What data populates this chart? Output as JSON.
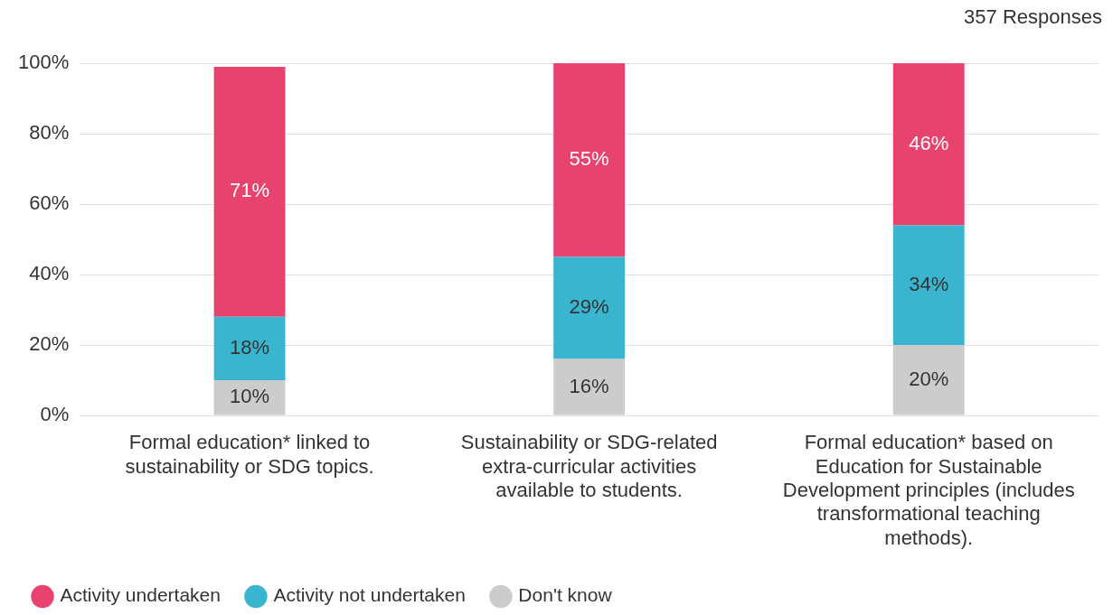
{
  "chart_data": {
    "type": "bar",
    "stacked": true,
    "annotations": [
      "357 Responses"
    ],
    "categories": [
      "Formal education* linked to sustainability or SDG topics.",
      "Sustainability or SDG-related extra-curricular activities available to students.",
      "Formal education* based on Education for Sustainable Development principles (includes transformational teaching methods)."
    ],
    "series": [
      {
        "name": "Don't know",
        "color": "#cccccc",
        "values": [
          10,
          16,
          20
        ],
        "value_labels": [
          "10%",
          "16%",
          "20%"
        ]
      },
      {
        "name": "Activity not undertaken",
        "color": "#3ab5d0",
        "values": [
          18,
          29,
          34
        ],
        "value_labels": [
          "18%",
          "29%",
          "34%"
        ]
      },
      {
        "name": "Activity undertaken",
        "color": "#e8436e",
        "values": [
          71,
          55,
          46
        ],
        "value_labels": [
          "71%",
          "55%",
          "46%"
        ]
      }
    ],
    "ylim": [
      0,
      100
    ],
    "yticks": [
      {
        "value": 0,
        "label": "0%"
      },
      {
        "value": 20,
        "label": "20%"
      },
      {
        "value": 40,
        "label": "40%"
      },
      {
        "value": 60,
        "label": "60%"
      },
      {
        "value": 80,
        "label": "80%"
      },
      {
        "value": 100,
        "label": "100%"
      }
    ],
    "grid": "y",
    "legend": "bottom left"
  }
}
